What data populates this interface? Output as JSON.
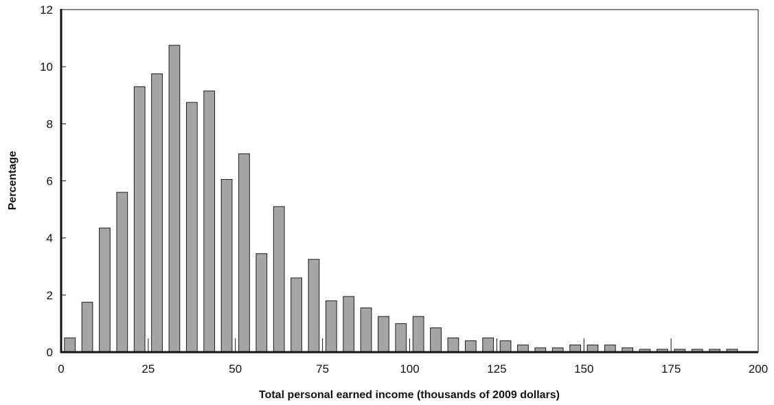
{
  "chart_data": {
    "type": "bar",
    "xlabel": "Total personal earned income (thousands of 2009 dollars)",
    "ylabel": "Percentage",
    "xlim": [
      0,
      200
    ],
    "ylim": [
      0,
      12
    ],
    "xticks": [
      0,
      25,
      50,
      75,
      100,
      125,
      150,
      175,
      200
    ],
    "yticks": [
      0,
      2,
      4,
      6,
      8,
      10,
      12
    ],
    "grid": false,
    "bin_width": 5,
    "bins": [
      {
        "x": 2.5,
        "value": 0.5
      },
      {
        "x": 7.5,
        "value": 1.75
      },
      {
        "x": 12.5,
        "value": 4.35
      },
      {
        "x": 17.5,
        "value": 5.6
      },
      {
        "x": 22.5,
        "value": 9.3
      },
      {
        "x": 27.5,
        "value": 9.75
      },
      {
        "x": 32.5,
        "value": 10.75
      },
      {
        "x": 37.5,
        "value": 8.75
      },
      {
        "x": 42.5,
        "value": 9.15
      },
      {
        "x": 47.5,
        "value": 6.05
      },
      {
        "x": 52.5,
        "value": 6.95
      },
      {
        "x": 57.5,
        "value": 3.45
      },
      {
        "x": 62.5,
        "value": 5.1
      },
      {
        "x": 67.5,
        "value": 2.6
      },
      {
        "x": 72.5,
        "value": 3.25
      },
      {
        "x": 77.5,
        "value": 1.8
      },
      {
        "x": 82.5,
        "value": 1.95
      },
      {
        "x": 87.5,
        "value": 1.55
      },
      {
        "x": 92.5,
        "value": 1.25
      },
      {
        "x": 97.5,
        "value": 1.0
      },
      {
        "x": 102.5,
        "value": 1.25
      },
      {
        "x": 107.5,
        "value": 0.85
      },
      {
        "x": 112.5,
        "value": 0.5
      },
      {
        "x": 117.5,
        "value": 0.4
      },
      {
        "x": 122.5,
        "value": 0.5
      },
      {
        "x": 127.5,
        "value": 0.4
      },
      {
        "x": 132.5,
        "value": 0.25
      },
      {
        "x": 137.5,
        "value": 0.15
      },
      {
        "x": 142.5,
        "value": 0.15
      },
      {
        "x": 147.5,
        "value": 0.25
      },
      {
        "x": 152.5,
        "value": 0.25
      },
      {
        "x": 157.5,
        "value": 0.25
      },
      {
        "x": 162.5,
        "value": 0.15
      },
      {
        "x": 167.5,
        "value": 0.1
      },
      {
        "x": 172.5,
        "value": 0.1
      },
      {
        "x": 177.5,
        "value": 0.1
      },
      {
        "x": 182.5,
        "value": 0.1
      },
      {
        "x": 187.5,
        "value": 0.1
      },
      {
        "x": 192.5,
        "value": 0.1
      }
    ]
  }
}
